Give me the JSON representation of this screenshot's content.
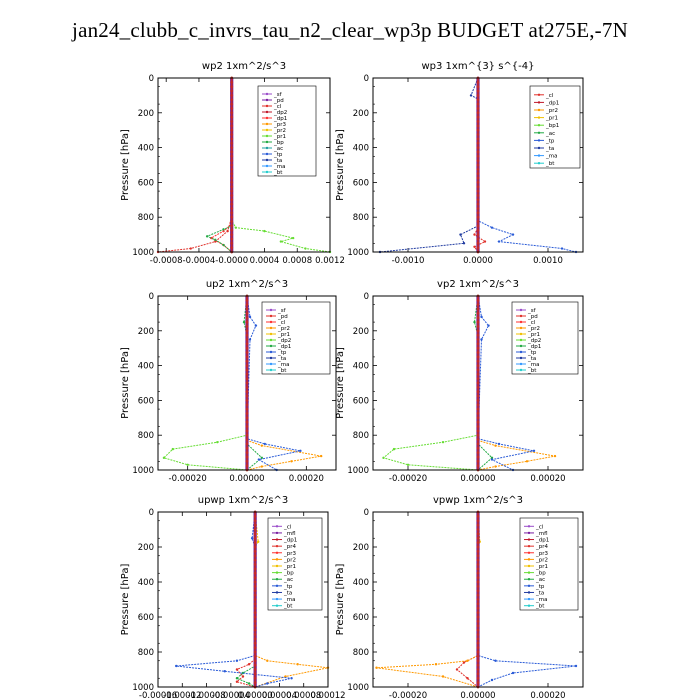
{
  "title": "jan24_clubb_c_invrs_tau_n2_clear_wp3p  BUDGET at275E,-7N",
  "chart_data": [
    {
      "id": "wp2",
      "type": "line",
      "title": "wp2   1xm^2/s^3",
      "ylabel": "Pressure  [hPa]",
      "xlim": [
        -0.0009,
        0.0012
      ],
      "ylim": [
        1000,
        0
      ],
      "xticks": [
        -0.0008,
        -0.0004,
        0.0,
        0.0004,
        0.0008,
        0.0012
      ],
      "xtick_labels": [
        "-0.0008",
        "-0.0004",
        "-0.0000",
        "0.0004",
        "0.0008",
        "0.0012"
      ],
      "yticks": [
        0,
        200,
        400,
        600,
        800,
        1000
      ],
      "legend_placement": "top-right",
      "series": [
        {
          "name": "_sf",
          "color": "#9b4dca"
        },
        {
          "name": "_pd",
          "color": "#7a1fa2"
        },
        {
          "name": "_cl",
          "color": "#e0302a",
          "x": [
            0,
            0,
            -5e-05,
            -0.0002,
            -0.0005,
            -0.0009
          ],
          "y": [
            0,
            800,
            880,
            940,
            980,
            1000
          ]
        },
        {
          "name": "_dp2",
          "color": "#c0182a"
        },
        {
          "name": "_dp1",
          "color": "#ff3030",
          "x": [
            0,
            0,
            -0.0001,
            -0.00025,
            -0.0001,
            0
          ],
          "y": [
            0,
            840,
            880,
            920,
            960,
            1000
          ]
        },
        {
          "name": "_pr3",
          "color": "#ff9900"
        },
        {
          "name": "_pr2",
          "color": "#f0c000"
        },
        {
          "name": "_pr1",
          "color": "#66dd33",
          "x": [
            0,
            0,
            5e-05,
            0.0004,
            0.00075,
            0.0006,
            0.0009,
            0.0012
          ],
          "y": [
            0,
            820,
            860,
            880,
            920,
            940,
            980,
            1000
          ]
        },
        {
          "name": "_bp",
          "color": "#22aa44",
          "x": [
            0,
            0,
            -0.0001,
            -0.0003,
            -0.0002,
            -0.0001,
            0
          ],
          "y": [
            0,
            850,
            870,
            910,
            930,
            960,
            1000
          ]
        },
        {
          "name": "_ac",
          "color": "#1fa0a0"
        },
        {
          "name": "_tp",
          "color": "#2a5bd7"
        },
        {
          "name": "_ta",
          "color": "#1f3aa0"
        },
        {
          "name": "_ma",
          "color": "#3399ff"
        },
        {
          "name": "_bt",
          "color": "#22cccc"
        }
      ]
    },
    {
      "id": "wp3",
      "type": "line",
      "title": "wp3   1xm^{3} s^{-4}",
      "ylabel": "Pressure  [hPa]",
      "xlim": [
        -0.0015,
        0.0015
      ],
      "ylim": [
        1000,
        0
      ],
      "xticks": [
        -0.001,
        0.0,
        0.001
      ],
      "xtick_labels": [
        "-0.0010",
        "0.0000",
        "0.0010"
      ],
      "yticks": [
        0,
        200,
        400,
        600,
        800,
        1000
      ],
      "legend_placement": "top-right",
      "series": [
        {
          "name": "_cl",
          "color": "#e0302a",
          "x": [
            0,
            0,
            -5e-05,
            0.0001,
            -5e-05,
            0
          ],
          "y": [
            0,
            860,
            900,
            940,
            970,
            1000
          ]
        },
        {
          "name": "_dp1",
          "color": "#c0182a"
        },
        {
          "name": "_pr2",
          "color": "#ff9900"
        },
        {
          "name": "_pr1",
          "color": "#f0c000"
        },
        {
          "name": "_bp1",
          "color": "#66dd33"
        },
        {
          "name": "_ac",
          "color": "#22aa44"
        },
        {
          "name": "_tp",
          "color": "#2a5bd7",
          "x": [
            0,
            0,
            0.0002,
            0.0005,
            0.0003,
            0.0012,
            0.0014
          ],
          "y": [
            0,
            820,
            860,
            900,
            940,
            980,
            1000
          ]
        },
        {
          "name": "_ta",
          "color": "#1f3aa0",
          "x": [
            0,
            -0.0001,
            0,
            0,
            -0.00025,
            -0.0002,
            -0.0014
          ],
          "y": [
            0,
            100,
            120,
            850,
            900,
            950,
            1000
          ]
        },
        {
          "name": "_ma",
          "color": "#3399ff"
        },
        {
          "name": "_bt",
          "color": "#22cccc"
        }
      ]
    },
    {
      "id": "up2",
      "type": "line",
      "title": "up2   1xm^2/s^3",
      "ylabel": "Pressure  [hPa]",
      "xlim": [
        -0.0003,
        0.0003
      ],
      "ylim": [
        1000,
        0
      ],
      "xticks": [
        -0.0002,
        0.0,
        0.0002
      ],
      "xtick_labels": [
        "-0.00020",
        "0.00000",
        "0.00020"
      ],
      "yticks": [
        0,
        200,
        400,
        600,
        800,
        1000
      ],
      "legend_placement": "top-right",
      "series": [
        {
          "name": "_sf",
          "color": "#9b4dca"
        },
        {
          "name": "_pd",
          "color": "#e0302a"
        },
        {
          "name": "_cl",
          "color": "#ff3030"
        },
        {
          "name": "_pr2",
          "color": "#ff9900",
          "x": [
            0,
            0,
            5e-05,
            0.00025,
            0.00015,
            5e-05,
            0
          ],
          "y": [
            0,
            830,
            860,
            920,
            950,
            980,
            1000
          ]
        },
        {
          "name": "_pr1",
          "color": "#f0c000"
        },
        {
          "name": "_dp2",
          "color": "#66dd33",
          "x": [
            0,
            0,
            -0.0001,
            -0.00025,
            -0.00028,
            -0.0002,
            0
          ],
          "y": [
            0,
            800,
            840,
            880,
            930,
            970,
            1000
          ]
        },
        {
          "name": "_dp1",
          "color": "#22aa44",
          "x": [
            0,
            -1e-05,
            0,
            0,
            5e-05,
            0
          ],
          "y": [
            0,
            150,
            230,
            850,
            930,
            1000
          ]
        },
        {
          "name": "_tp",
          "color": "#2a5bd7",
          "x": [
            0,
            1e-05,
            3e-05,
            1e-05,
            0,
            6e-05,
            0.00018,
            4e-05,
            0.0001
          ],
          "y": [
            0,
            120,
            170,
            250,
            820,
            850,
            890,
            940,
            1000
          ]
        },
        {
          "name": "_ta",
          "color": "#1f3aa0"
        },
        {
          "name": "_ma",
          "color": "#3399ff"
        },
        {
          "name": "_bt",
          "color": "#22cccc"
        }
      ]
    },
    {
      "id": "vp2",
      "type": "line",
      "title": "vp2   1xm^2/s^3",
      "ylabel": "Pressure  [hPa]",
      "xlim": [
        -0.0003,
        0.0003
      ],
      "ylim": [
        1000,
        0
      ],
      "xticks": [
        -0.0002,
        0.0,
        0.0002
      ],
      "xtick_labels": [
        "-0.00020",
        "0.00000",
        "0.00020"
      ],
      "yticks": [
        0,
        200,
        400,
        600,
        800,
        1000
      ],
      "legend_placement": "top-right",
      "series": [
        {
          "name": "_sf",
          "color": "#9b4dca"
        },
        {
          "name": "_pd",
          "color": "#e0302a"
        },
        {
          "name": "_cl",
          "color": "#ff3030"
        },
        {
          "name": "_pr2",
          "color": "#ff9900",
          "x": [
            0,
            0,
            5e-05,
            0.00022,
            0.00014,
            5e-05,
            0
          ],
          "y": [
            0,
            830,
            860,
            920,
            950,
            980,
            1000
          ]
        },
        {
          "name": "_pr1",
          "color": "#f0c000"
        },
        {
          "name": "_dp2",
          "color": "#66dd33",
          "x": [
            0,
            0,
            -0.0001,
            -0.00024,
            -0.00027,
            -0.0002,
            0
          ],
          "y": [
            0,
            800,
            840,
            880,
            930,
            970,
            1000
          ]
        },
        {
          "name": "_dp1",
          "color": "#22aa44",
          "x": [
            0,
            -1e-05,
            0,
            0,
            4e-05,
            0
          ],
          "y": [
            0,
            150,
            230,
            850,
            930,
            1000
          ]
        },
        {
          "name": "_tp",
          "color": "#2a5bd7",
          "x": [
            0,
            1e-05,
            3e-05,
            1e-05,
            0,
            6e-05,
            0.00016,
            4e-05,
            0.0001
          ],
          "y": [
            0,
            120,
            170,
            250,
            820,
            850,
            890,
            940,
            1000
          ]
        },
        {
          "name": "_ta",
          "color": "#1f3aa0"
        },
        {
          "name": "_ma",
          "color": "#3399ff"
        },
        {
          "name": "_bt",
          "color": "#22cccc"
        }
      ]
    },
    {
      "id": "upwp",
      "type": "line",
      "title": "upwp   1xm^2/s^3",
      "ylabel": "Pressure  [hPa]",
      "xlim": [
        -0.00016,
        0.00012
      ],
      "ylim": [
        1000,
        0
      ],
      "xticks": [
        -0.00016,
        -0.00012,
        -8e-05,
        -4e-05,
        0.0,
        4e-05,
        8e-05,
        0.00012
      ],
      "xtick_labels": [
        "-0.00016",
        "-0.00012",
        "-0.00008",
        "-0.00004",
        "0.00000",
        "0.00004",
        "0.00008",
        "0.00012"
      ],
      "yticks": [
        0,
        200,
        400,
        600,
        800,
        1000
      ],
      "legend_placement": "top-right",
      "series": [
        {
          "name": "_cl",
          "color": "#9b4dca"
        },
        {
          "name": "_mfl",
          "color": "#7a1fa2"
        },
        {
          "name": "_dp1",
          "color": "#c0182a"
        },
        {
          "name": "_pr4",
          "color": "#e0302a",
          "x": [
            0,
            0,
            -1e-05,
            -3e-05,
            -2e-05,
            -3e-05,
            0
          ],
          "y": [
            0,
            840,
            870,
            900,
            940,
            970,
            1000
          ]
        },
        {
          "name": "_pr3",
          "color": "#ff3030"
        },
        {
          "name": "_pr2",
          "color": "#ff9900",
          "x": [
            0,
            0,
            2e-05,
            7e-05,
            0.00012,
            5e-05,
            0
          ],
          "y": [
            0,
            820,
            850,
            870,
            890,
            940,
            1000
          ]
        },
        {
          "name": "_pr1",
          "color": "#f0c000",
          "x": [
            0,
            5e-06,
            0,
            0
          ],
          "y": [
            0,
            170,
            200,
            1000
          ]
        },
        {
          "name": "_bp",
          "color": "#66dd33"
        },
        {
          "name": "_ac",
          "color": "#22aa44",
          "x": [
            0,
            0,
            -2e-05,
            -3e-05,
            -1e-05,
            0
          ],
          "y": [
            0,
            880,
            920,
            950,
            980,
            1000
          ]
        },
        {
          "name": "_tp",
          "color": "#2a5bd7",
          "x": [
            0,
            -5e-06,
            0,
            0,
            -3e-05,
            -0.00013,
            -5e-05,
            6e-05,
            2e-05,
            0
          ],
          "y": [
            0,
            150,
            200,
            820,
            850,
            880,
            910,
            950,
            980,
            1000
          ]
        },
        {
          "name": "_ta",
          "color": "#1f3aa0"
        },
        {
          "name": "_ma",
          "color": "#3399ff"
        },
        {
          "name": "_bt",
          "color": "#22cccc"
        }
      ]
    },
    {
      "id": "vpwp",
      "type": "line",
      "title": "vpwp   1xm^2/s^3",
      "ylabel": "Pressure  [hPa]",
      "xlim": [
        -0.0003,
        0.0003
      ],
      "ylim": [
        1000,
        0
      ],
      "xticks": [
        -0.0002,
        0.0,
        0.0002
      ],
      "xtick_labels": [
        "-0.00020",
        "0.00000",
        "0.00020"
      ],
      "yticks": [
        0,
        200,
        400,
        600,
        800,
        1000
      ],
      "legend_placement": "top-right",
      "series": [
        {
          "name": "_cl",
          "color": "#9b4dca"
        },
        {
          "name": "_mfl",
          "color": "#7a1fa2"
        },
        {
          "name": "_dp1",
          "color": "#c0182a"
        },
        {
          "name": "_pr4",
          "color": "#e0302a",
          "x": [
            0,
            0,
            -4e-05,
            -6e-05,
            -3e-05,
            0
          ],
          "y": [
            0,
            820,
            860,
            900,
            950,
            1000
          ]
        },
        {
          "name": "_pr3",
          "color": "#ff3030"
        },
        {
          "name": "_pr2",
          "color": "#ff9900",
          "x": [
            0,
            0,
            -3e-05,
            -0.00012,
            -0.00029,
            -0.0001,
            0
          ],
          "y": [
            0,
            820,
            850,
            870,
            890,
            940,
            1000
          ]
        },
        {
          "name": "_pr1",
          "color": "#f0c000",
          "x": [
            0,
            5e-06,
            0,
            0
          ],
          "y": [
            0,
            170,
            200,
            1000
          ]
        },
        {
          "name": "_bp",
          "color": "#66dd33"
        },
        {
          "name": "_ac",
          "color": "#22aa44"
        },
        {
          "name": "_tp",
          "color": "#2a5bd7",
          "x": [
            0,
            0,
            5e-05,
            0.00028,
            0.0001,
            4e-05,
            0
          ],
          "y": [
            0,
            820,
            850,
            880,
            920,
            960,
            1000
          ]
        },
        {
          "name": "_ta",
          "color": "#1f3aa0"
        },
        {
          "name": "_ma",
          "color": "#3399ff"
        },
        {
          "name": "_bt",
          "color": "#22cccc"
        }
      ]
    }
  ]
}
